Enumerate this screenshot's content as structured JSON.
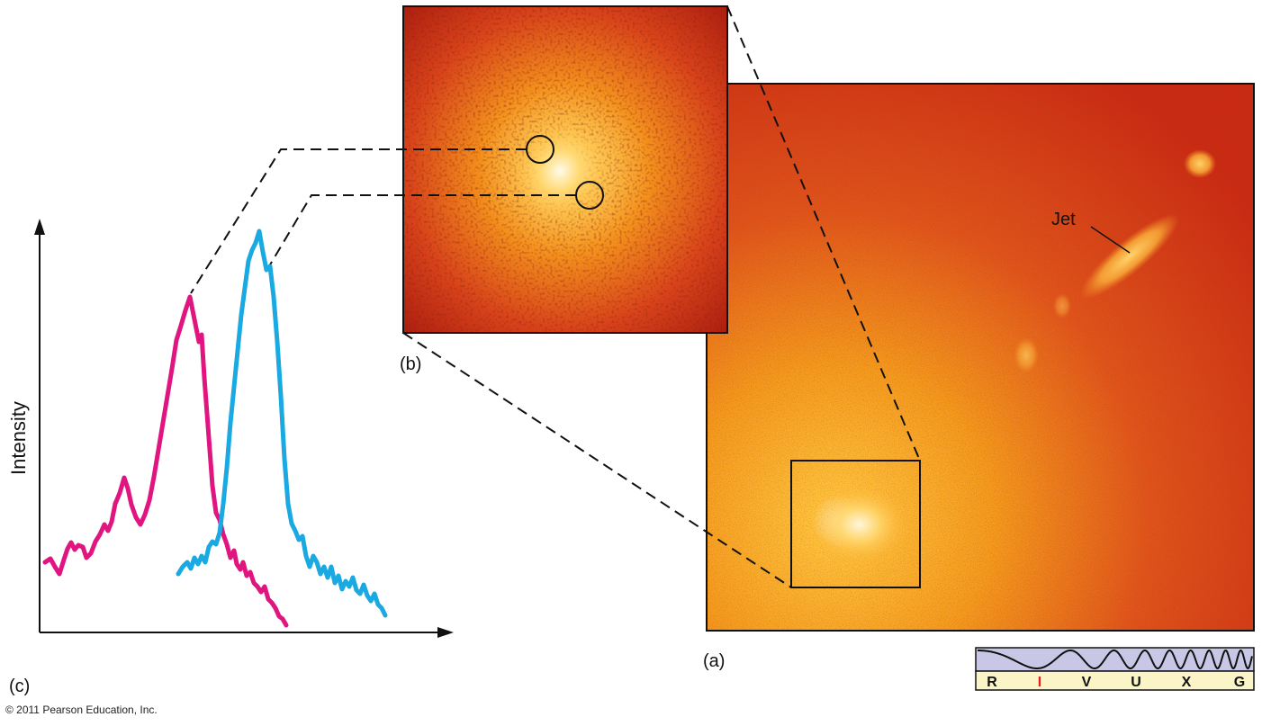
{
  "panels": {
    "a_label": "(a)",
    "b_label": "(b)",
    "c_label": "(c)"
  },
  "annotations": {
    "jet": "Jet"
  },
  "graph": {
    "ylabel": "Intensity",
    "series": [
      {
        "color": "#e0157f"
      },
      {
        "color": "#1aa9e0"
      }
    ]
  },
  "spectrum_bar": {
    "letters": [
      "R",
      "I",
      "V",
      "U",
      "X",
      "G"
    ],
    "highlight": "I",
    "highlight_color": "#e31b23",
    "wave_bg": "#c9c7e6",
    "letter_bg": "#fbf4c6"
  },
  "footer": {
    "copyright": "© 2011 Pearson Education, Inc."
  }
}
